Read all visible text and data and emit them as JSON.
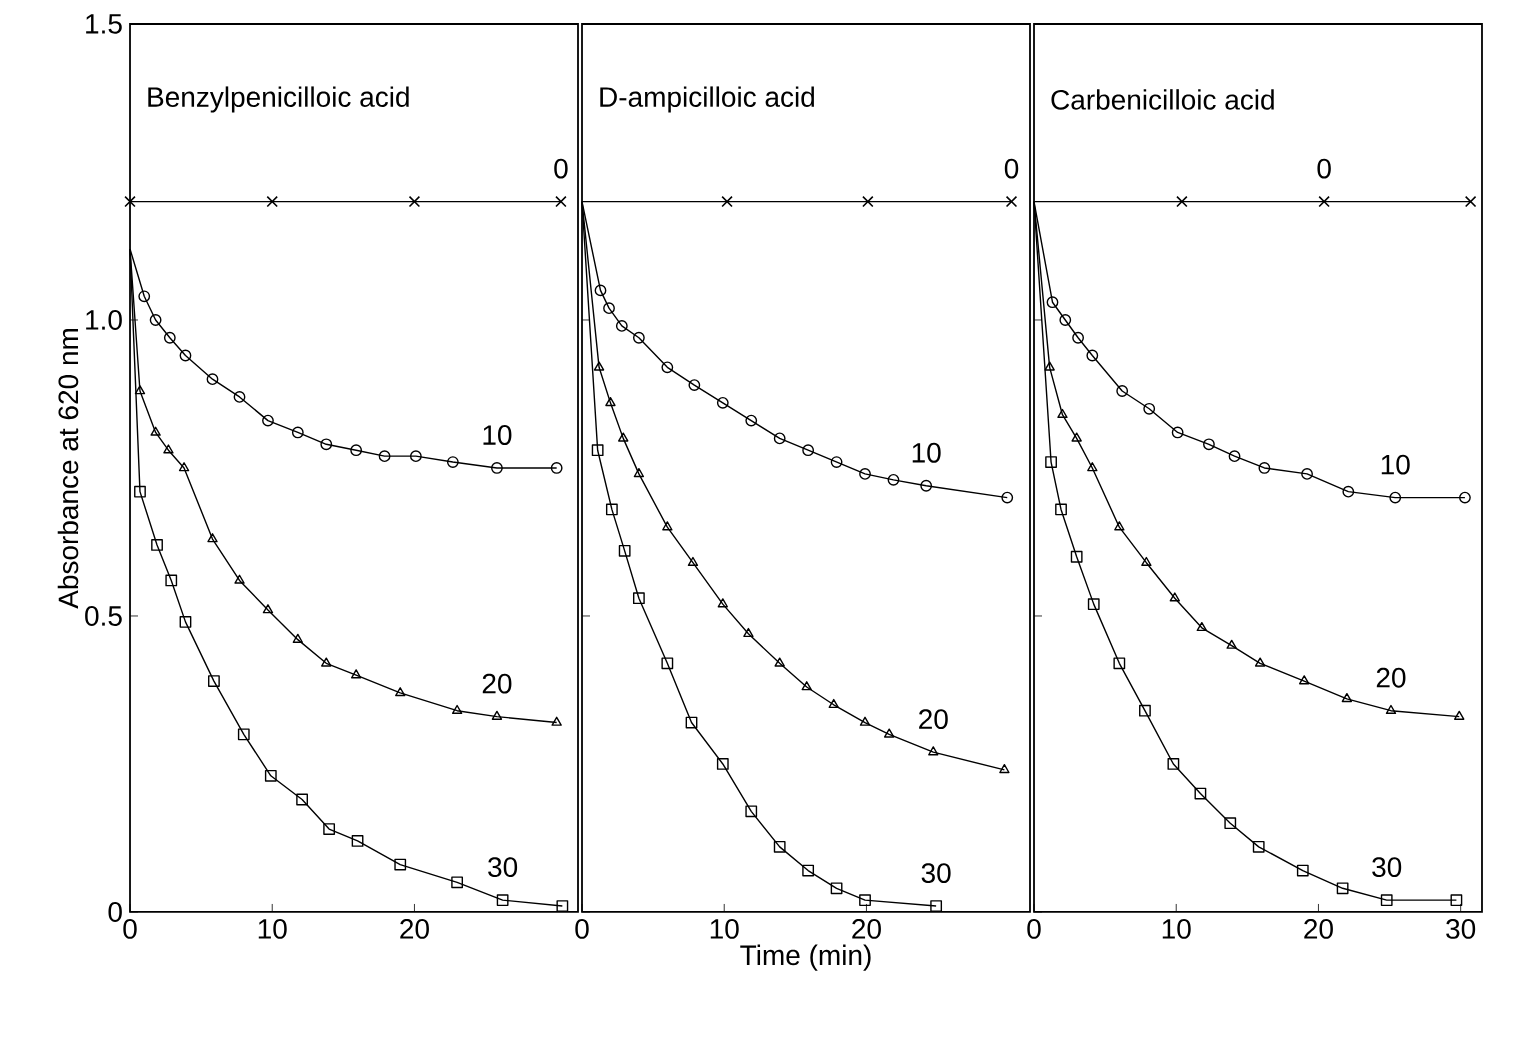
{
  "chart_data": [
    {
      "type": "line",
      "title": "Benzylpenicilloic   acid",
      "ylabel": "Absorbance  at  620 nm",
      "xlim": [
        0,
        31.5
      ],
      "xticks": [
        0,
        10,
        20
      ],
      "ylim": [
        0,
        1.5
      ],
      "yticks": [
        0,
        0.5,
        {
          "value": 1.0,
          "label": "1.0"
        },
        1.5
      ],
      "series": [
        {
          "name": "0",
          "color": "#000000",
          "marker": "cross",
          "x": [
            0,
            10,
            20,
            30.3
          ],
          "values": [
            1.2,
            1.2,
            1.2,
            1.2
          ]
        },
        {
          "name": "10",
          "color": "#000000",
          "marker": "circle",
          "x": [
            0,
            1.0,
            1.8,
            2.8,
            3.9,
            5.8,
            7.7,
            9.7,
            11.8,
            13.8,
            15.9,
            17.9,
            20.1,
            22.7,
            25.8,
            30.0
          ],
          "values": [
            1.12,
            1.04,
            1.0,
            0.97,
            0.94,
            0.9,
            0.87,
            0.83,
            0.81,
            0.79,
            0.78,
            0.77,
            0.77,
            0.76,
            0.75,
            0.75
          ]
        },
        {
          "name": "20",
          "color": "#000000",
          "marker": "triangle",
          "x": [
            0,
            0.7,
            1.8,
            2.7,
            3.8,
            5.8,
            7.7,
            9.7,
            11.8,
            13.8,
            15.9,
            19.0,
            23.0,
            25.8,
            30.0
          ],
          "values": [
            1.12,
            0.88,
            0.81,
            0.78,
            0.75,
            0.63,
            0.56,
            0.51,
            0.46,
            0.42,
            0.4,
            0.37,
            0.34,
            0.33,
            0.32
          ]
        },
        {
          "name": "30",
          "color": "#000000",
          "marker": "square",
          "x": [
            0,
            0.7,
            1.9,
            2.9,
            3.9,
            5.9,
            8.0,
            9.9,
            12.1,
            14.0,
            16.0,
            19.0,
            23.0,
            26.2,
            30.4
          ],
          "values": [
            1.12,
            0.71,
            0.62,
            0.56,
            0.49,
            0.39,
            0.3,
            0.23,
            0.19,
            0.14,
            0.12,
            0.08,
            0.05,
            0.02,
            0.01
          ]
        }
      ]
    },
    {
      "type": "line",
      "title": "D-ampicilloic  acid",
      "xlabel": "Time  (min)",
      "xlim": [
        0,
        31.5
      ],
      "xticks": [
        0,
        10,
        20
      ],
      "ylim": [
        0,
        1.5
      ],
      "yticks": [
        0,
        0.5,
        1.0,
        1.5
      ],
      "tick_labels": "x",
      "series": [
        {
          "name": "0",
          "color": "#000000",
          "marker": "cross",
          "x": [
            0,
            10.2,
            20.1,
            30.2
          ],
          "values": [
            1.2,
            1.2,
            1.2,
            1.2
          ]
        },
        {
          "name": "10",
          "color": "#000000",
          "marker": "circle",
          "x": [
            0,
            1.3,
            1.9,
            2.8,
            4.0,
            6.0,
            7.9,
            9.9,
            11.9,
            13.9,
            15.9,
            17.9,
            19.9,
            21.9,
            24.2,
            29.9
          ],
          "values": [
            1.2,
            1.05,
            1.02,
            0.99,
            0.97,
            0.92,
            0.89,
            0.86,
            0.83,
            0.8,
            0.78,
            0.76,
            0.74,
            0.73,
            0.72,
            0.7
          ]
        },
        {
          "name": "20",
          "color": "#000000",
          "marker": "triangle",
          "x": [
            0,
            1.2,
            2.0,
            2.9,
            4.0,
            6.0,
            7.8,
            9.9,
            11.7,
            13.9,
            15.8,
            17.7,
            19.9,
            21.6,
            24.7,
            29.7
          ],
          "values": [
            1.2,
            0.92,
            0.86,
            0.8,
            0.74,
            0.65,
            0.59,
            0.52,
            0.47,
            0.42,
            0.38,
            0.35,
            0.32,
            0.3,
            0.27,
            0.24
          ]
        },
        {
          "name": "30",
          "color": "#000000",
          "marker": "square",
          "x": [
            0,
            1.1,
            2.1,
            3.0,
            4.0,
            6.0,
            7.7,
            9.9,
            11.9,
            13.9,
            15.9,
            17.9,
            19.9,
            24.9
          ],
          "values": [
            1.2,
            0.78,
            0.68,
            0.61,
            0.53,
            0.42,
            0.32,
            0.25,
            0.17,
            0.11,
            0.07,
            0.04,
            0.02,
            0.01
          ]
        }
      ]
    },
    {
      "type": "line",
      "title": "Carbenicilloic   acid",
      "xlim": [
        0,
        31.5
      ],
      "xticks": [
        0,
        10,
        20,
        30
      ],
      "ylim": [
        0,
        1.5
      ],
      "yticks": [
        0,
        0.5,
        1.0,
        1.5
      ],
      "tick_labels": "x",
      "series": [
        {
          "name": "0",
          "color": "#000000",
          "marker": "cross",
          "x": [
            0,
            10.4,
            20.4,
            30.7
          ],
          "values": [
            1.2,
            1.2,
            1.2,
            1.2
          ]
        },
        {
          "name": "10",
          "color": "#000000",
          "marker": "circle",
          "x": [
            0,
            1.3,
            2.2,
            3.1,
            4.1,
            6.2,
            8.1,
            10.1,
            12.3,
            14.1,
            16.2,
            19.2,
            22.1,
            25.4,
            30.3
          ],
          "values": [
            1.2,
            1.03,
            1.0,
            0.97,
            0.94,
            0.88,
            0.85,
            0.81,
            0.79,
            0.77,
            0.75,
            0.74,
            0.71,
            0.7,
            0.7
          ]
        },
        {
          "name": "20",
          "color": "#000000",
          "marker": "triangle",
          "x": [
            0,
            1.1,
            2.0,
            3.0,
            4.1,
            6.0,
            7.9,
            9.9,
            11.8,
            13.9,
            15.9,
            19.0,
            22.0,
            25.1,
            29.9
          ],
          "values": [
            1.2,
            0.92,
            0.84,
            0.8,
            0.75,
            0.65,
            0.59,
            0.53,
            0.48,
            0.45,
            0.42,
            0.39,
            0.36,
            0.34,
            0.33
          ]
        },
        {
          "name": "30",
          "color": "#000000",
          "marker": "square",
          "x": [
            0,
            1.2,
            1.9,
            3.0,
            4.2,
            6.0,
            7.8,
            9.8,
            11.7,
            13.8,
            15.8,
            18.9,
            21.7,
            24.8,
            29.7
          ],
          "values": [
            1.2,
            0.76,
            0.68,
            0.6,
            0.52,
            0.42,
            0.34,
            0.25,
            0.2,
            0.15,
            0.11,
            0.07,
            0.04,
            0.02,
            0.02
          ]
        }
      ]
    }
  ]
}
